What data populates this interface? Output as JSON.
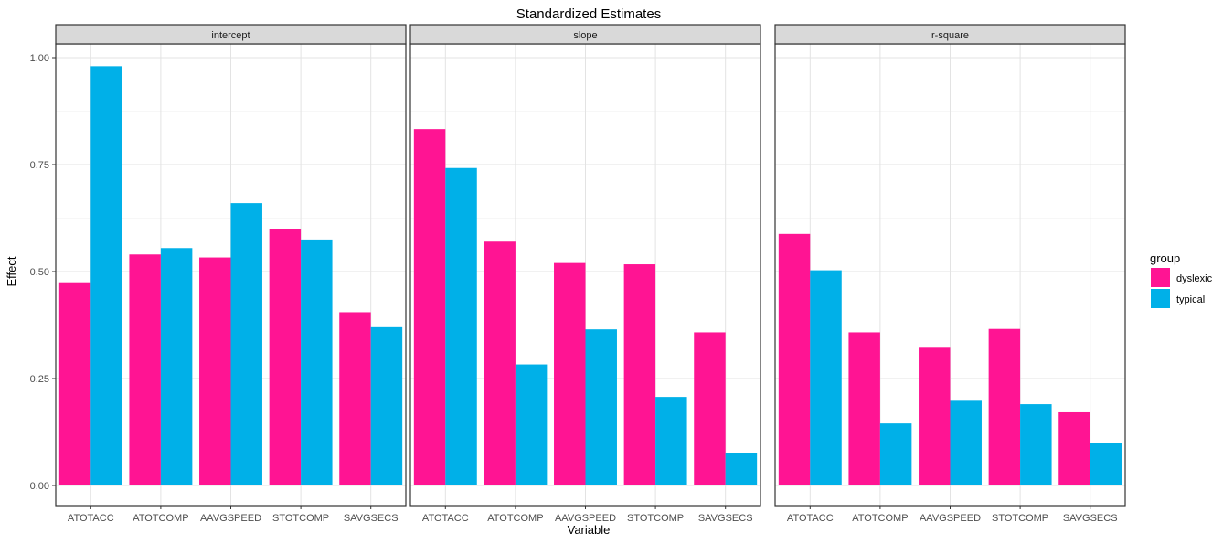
{
  "chart_data": {
    "type": "bar",
    "title": "Standardized Estimates",
    "xlabel": "Variable",
    "ylabel": "Effect",
    "ylim": [
      0,
      1.0
    ],
    "yticks": [
      0.0,
      0.25,
      0.5,
      0.75,
      1.0
    ],
    "ytick_labels": [
      "0.00",
      "0.25",
      "0.50",
      "0.75",
      "1.00"
    ],
    "grid": true,
    "legend": {
      "title": "group",
      "position": "right"
    },
    "categories": [
      "ATOTACC",
      "ATOTCOMP",
      "AAVGSPEED",
      "STOTCOMP",
      "SAVGSECS"
    ],
    "colors": {
      "dyslexic": "#ff1493",
      "typical": "#00b0e8"
    },
    "panels": [
      {
        "label": "intercept",
        "series": [
          {
            "name": "dyslexic",
            "values": [
              0.475,
              0.54,
              0.533,
              0.6,
              0.405
            ]
          },
          {
            "name": "typical",
            "values": [
              0.98,
              0.555,
              0.66,
              0.575,
              0.37
            ]
          }
        ]
      },
      {
        "label": "slope",
        "series": [
          {
            "name": "dyslexic",
            "values": [
              0.833,
              0.57,
              0.52,
              0.517,
              0.358
            ]
          },
          {
            "name": "typical",
            "values": [
              0.742,
              0.283,
              0.365,
              0.207,
              0.075
            ]
          }
        ]
      },
      {
        "label": "r-square",
        "series": [
          {
            "name": "dyslexic",
            "values": [
              0.588,
              0.358,
              0.322,
              0.366,
              0.171
            ]
          },
          {
            "name": "typical",
            "values": [
              0.503,
              0.145,
              0.198,
              0.19,
              0.1
            ]
          }
        ]
      }
    ]
  }
}
